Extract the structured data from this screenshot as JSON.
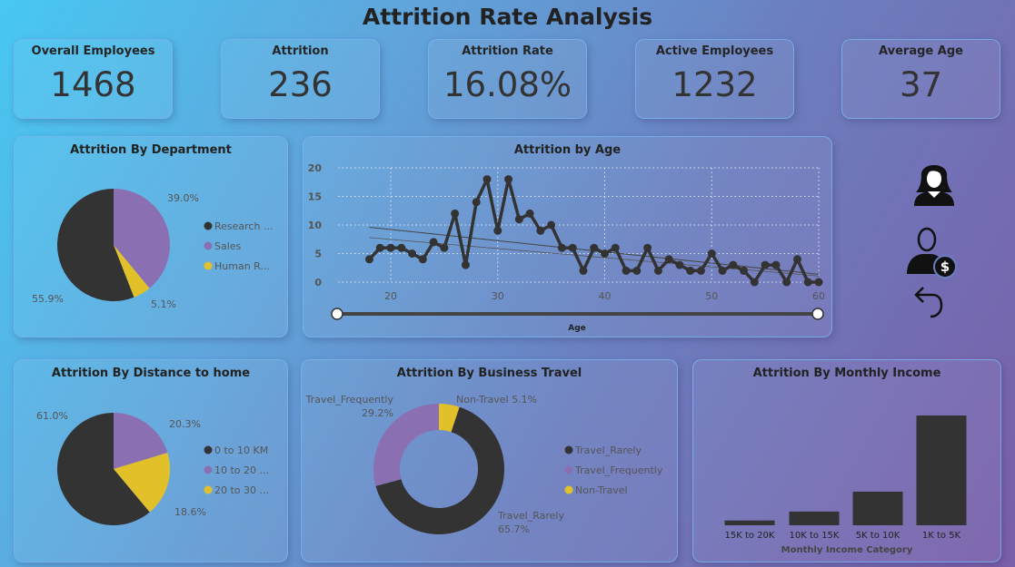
{
  "title": "Attrition Rate Analysis",
  "kpis": [
    {
      "label": "Overall Employees",
      "value": "1468"
    },
    {
      "label": "Attrition",
      "value": "236"
    },
    {
      "label": "Attrition Rate",
      "value": "16.08%"
    },
    {
      "label": "Active Employees",
      "value": "1232"
    },
    {
      "label": "Average Age",
      "value": "37"
    }
  ],
  "icons": [
    "female-user-icon",
    "user-dollar-icon",
    "undo-icon"
  ],
  "colors": {
    "dark": "#333333",
    "purple": "#8b6fb3",
    "yellow": "#e2c029"
  },
  "chart_data": [
    {
      "type": "pie",
      "title": "Attrition By Department",
      "legend": "right",
      "slices": [
        {
          "name": "Sales",
          "legend": "Sales",
          "value": 39.0,
          "label": "39.0%",
          "color": "#8b6fb3"
        },
        {
          "name": "Human Resources",
          "legend": "Human R...",
          "value": 5.1,
          "label": "5.1%",
          "color": "#e2c029"
        },
        {
          "name": "Research & Development",
          "legend": "Research ...",
          "value": 55.9,
          "label": "55.9%",
          "color": "#333333"
        }
      ],
      "legend_order": [
        "Research ...",
        "Sales",
        "Human R..."
      ]
    },
    {
      "type": "line",
      "title": "Attrition by Age",
      "xlabel": "Age",
      "xlim": [
        18,
        60
      ],
      "ylim": [
        0,
        20
      ],
      "xticks": [
        20,
        30,
        40,
        50,
        60
      ],
      "yticks": [
        0,
        5,
        10,
        15,
        20
      ],
      "grid": true,
      "trendlines": true,
      "x": [
        18,
        19,
        20,
        21,
        22,
        23,
        24,
        25,
        26,
        27,
        28,
        29,
        30,
        31,
        32,
        33,
        34,
        35,
        36,
        37,
        38,
        39,
        40,
        41,
        42,
        43,
        44,
        45,
        46,
        47,
        48,
        49,
        50,
        51,
        52,
        53,
        54,
        55,
        56,
        57,
        58,
        59,
        60
      ],
      "y": [
        4,
        6,
        6,
        6,
        5,
        4,
        7,
        6,
        12,
        3,
        14,
        18,
        9,
        18,
        11,
        12,
        9,
        10,
        6,
        6,
        2,
        6,
        5,
        6,
        2,
        2,
        6,
        2,
        4,
        3,
        2,
        2,
        5,
        2,
        3,
        2,
        0,
        3,
        3,
        0,
        4,
        0,
        0
      ],
      "slider_range": [
        18,
        60
      ]
    },
    {
      "type": "pie",
      "title": "Attrition By Distance to home",
      "legend": "right",
      "slices": [
        {
          "name": "10 to 20 KM",
          "legend": "10 to 20 ...",
          "value": 20.3,
          "label": "20.3%",
          "color": "#8b6fb3"
        },
        {
          "name": "20 to 30 KM",
          "legend": "20 to 30 ...",
          "value": 18.6,
          "label": "18.6%",
          "color": "#e2c029"
        },
        {
          "name": "0 to 10 KM",
          "legend": "0 to 10 KM",
          "value": 61.0,
          "label": "61.0%",
          "color": "#333333"
        }
      ],
      "legend_order": [
        "0 to 10 KM",
        "10 to 20 ...",
        "20 to 30 ..."
      ]
    },
    {
      "type": "donut",
      "title": "Attrition By Business Travel",
      "legend": "right",
      "slices": [
        {
          "name": "Non-Travel",
          "value": 5.1,
          "label": "Non-Travel 5.1%",
          "color": "#e2c029"
        },
        {
          "name": "Travel_Rarely",
          "value": 65.7,
          "label": "Travel_Rarely",
          "label2": "65.7%",
          "color": "#333333"
        },
        {
          "name": "Travel_Frequently",
          "value": 29.2,
          "label": "Travel_Frequently",
          "label2": "29.2%",
          "color": "#8b6fb3"
        }
      ],
      "legend_order": [
        "Travel_Rarely",
        "Travel_Frequently",
        "Non-Travel"
      ]
    },
    {
      "type": "bar",
      "title": "Attrition By Monthly Income",
      "xlabel": "Monthly Income Category",
      "categories": [
        "15K to 20K",
        "10K to 15K",
        "5K to 10K",
        "1K to 5K"
      ],
      "values": [
        7,
        20,
        49,
        160
      ],
      "color": "#333333"
    }
  ]
}
